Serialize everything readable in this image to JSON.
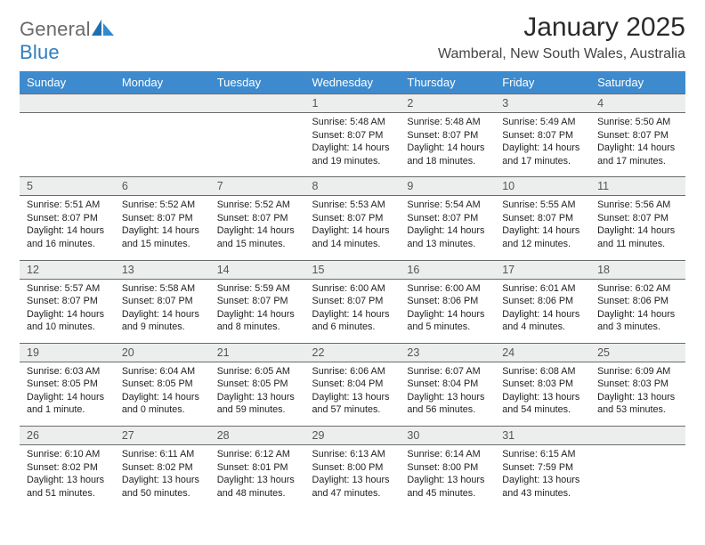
{
  "logo": {
    "text1": "General",
    "text2": "Blue"
  },
  "title": "January 2025",
  "location": "Wamberal, New South Wales, Australia",
  "header_bg": "#3d8bce",
  "header_fg": "#ffffff",
  "daynum_bg": "#eceded",
  "row_border": "#6b6b6b",
  "weekdays": [
    "Sunday",
    "Monday",
    "Tuesday",
    "Wednesday",
    "Thursday",
    "Friday",
    "Saturday"
  ],
  "weeks": [
    [
      null,
      null,
      null,
      {
        "n": "1",
        "sunrise": "5:48 AM",
        "sunset": "8:07 PM",
        "daylight": "14 hours and 19 minutes."
      },
      {
        "n": "2",
        "sunrise": "5:48 AM",
        "sunset": "8:07 PM",
        "daylight": "14 hours and 18 minutes."
      },
      {
        "n": "3",
        "sunrise": "5:49 AM",
        "sunset": "8:07 PM",
        "daylight": "14 hours and 17 minutes."
      },
      {
        "n": "4",
        "sunrise": "5:50 AM",
        "sunset": "8:07 PM",
        "daylight": "14 hours and 17 minutes."
      }
    ],
    [
      {
        "n": "5",
        "sunrise": "5:51 AM",
        "sunset": "8:07 PM",
        "daylight": "14 hours and 16 minutes."
      },
      {
        "n": "6",
        "sunrise": "5:52 AM",
        "sunset": "8:07 PM",
        "daylight": "14 hours and 15 minutes."
      },
      {
        "n": "7",
        "sunrise": "5:52 AM",
        "sunset": "8:07 PM",
        "daylight": "14 hours and 15 minutes."
      },
      {
        "n": "8",
        "sunrise": "5:53 AM",
        "sunset": "8:07 PM",
        "daylight": "14 hours and 14 minutes."
      },
      {
        "n": "9",
        "sunrise": "5:54 AM",
        "sunset": "8:07 PM",
        "daylight": "14 hours and 13 minutes."
      },
      {
        "n": "10",
        "sunrise": "5:55 AM",
        "sunset": "8:07 PM",
        "daylight": "14 hours and 12 minutes."
      },
      {
        "n": "11",
        "sunrise": "5:56 AM",
        "sunset": "8:07 PM",
        "daylight": "14 hours and 11 minutes."
      }
    ],
    [
      {
        "n": "12",
        "sunrise": "5:57 AM",
        "sunset": "8:07 PM",
        "daylight": "14 hours and 10 minutes."
      },
      {
        "n": "13",
        "sunrise": "5:58 AM",
        "sunset": "8:07 PM",
        "daylight": "14 hours and 9 minutes."
      },
      {
        "n": "14",
        "sunrise": "5:59 AM",
        "sunset": "8:07 PM",
        "daylight": "14 hours and 8 minutes."
      },
      {
        "n": "15",
        "sunrise": "6:00 AM",
        "sunset": "8:07 PM",
        "daylight": "14 hours and 6 minutes."
      },
      {
        "n": "16",
        "sunrise": "6:00 AM",
        "sunset": "8:06 PM",
        "daylight": "14 hours and 5 minutes."
      },
      {
        "n": "17",
        "sunrise": "6:01 AM",
        "sunset": "8:06 PM",
        "daylight": "14 hours and 4 minutes."
      },
      {
        "n": "18",
        "sunrise": "6:02 AM",
        "sunset": "8:06 PM",
        "daylight": "14 hours and 3 minutes."
      }
    ],
    [
      {
        "n": "19",
        "sunrise": "6:03 AM",
        "sunset": "8:05 PM",
        "daylight": "14 hours and 1 minute."
      },
      {
        "n": "20",
        "sunrise": "6:04 AM",
        "sunset": "8:05 PM",
        "daylight": "14 hours and 0 minutes."
      },
      {
        "n": "21",
        "sunrise": "6:05 AM",
        "sunset": "8:05 PM",
        "daylight": "13 hours and 59 minutes."
      },
      {
        "n": "22",
        "sunrise": "6:06 AM",
        "sunset": "8:04 PM",
        "daylight": "13 hours and 57 minutes."
      },
      {
        "n": "23",
        "sunrise": "6:07 AM",
        "sunset": "8:04 PM",
        "daylight": "13 hours and 56 minutes."
      },
      {
        "n": "24",
        "sunrise": "6:08 AM",
        "sunset": "8:03 PM",
        "daylight": "13 hours and 54 minutes."
      },
      {
        "n": "25",
        "sunrise": "6:09 AM",
        "sunset": "8:03 PM",
        "daylight": "13 hours and 53 minutes."
      }
    ],
    [
      {
        "n": "26",
        "sunrise": "6:10 AM",
        "sunset": "8:02 PM",
        "daylight": "13 hours and 51 minutes."
      },
      {
        "n": "27",
        "sunrise": "6:11 AM",
        "sunset": "8:02 PM",
        "daylight": "13 hours and 50 minutes."
      },
      {
        "n": "28",
        "sunrise": "6:12 AM",
        "sunset": "8:01 PM",
        "daylight": "13 hours and 48 minutes."
      },
      {
        "n": "29",
        "sunrise": "6:13 AM",
        "sunset": "8:00 PM",
        "daylight": "13 hours and 47 minutes."
      },
      {
        "n": "30",
        "sunrise": "6:14 AM",
        "sunset": "8:00 PM",
        "daylight": "13 hours and 45 minutes."
      },
      {
        "n": "31",
        "sunrise": "6:15 AM",
        "sunset": "7:59 PM",
        "daylight": "13 hours and 43 minutes."
      },
      null
    ]
  ],
  "labels": {
    "sunrise": "Sunrise:",
    "sunset": "Sunset:",
    "daylight": "Daylight:"
  }
}
